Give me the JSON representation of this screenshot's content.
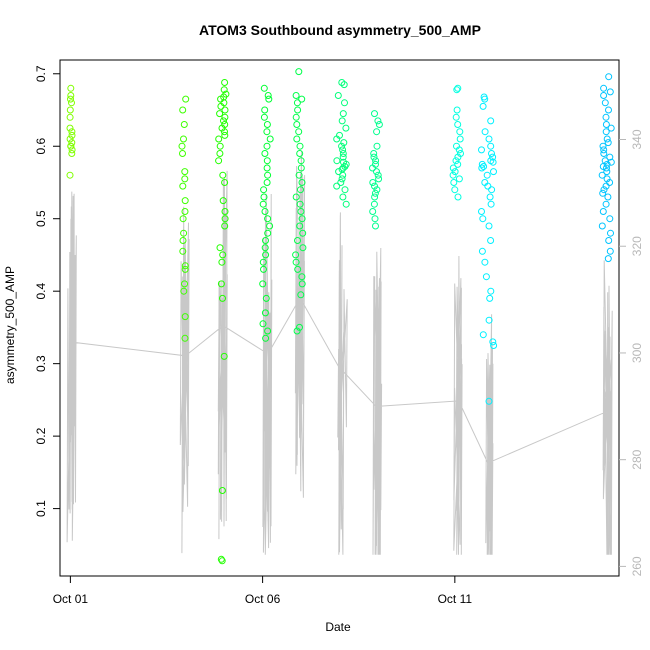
{
  "chart_data": {
    "type": "scatter",
    "title": "ATOM3 Southbound asymmetry_500_AMP",
    "xlabel": "Date",
    "ylabel": "asymmetry_500_AMP",
    "x_ticks": [
      "Oct 01",
      "Oct 06",
      "Oct 11"
    ],
    "x_tick_days": [
      1,
      6,
      11
    ],
    "xlim": [
      0.73,
      15.27
    ],
    "ylim": [
      0.007,
      0.719
    ],
    "y_ticks": [
      0.1,
      0.2,
      0.3,
      0.4,
      0.5,
      0.6,
      0.7
    ],
    "y_right_ticks": [
      260,
      280,
      300,
      320,
      340
    ],
    "y_right_lim": [
      258.2,
      354.9
    ],
    "grid": false,
    "point_style": "open-circle",
    "line_color": "#c8c8c8",
    "right_axis_color": "#b8b8b8",
    "series": [
      {
        "color": "#80ff00",
        "center_day": 1.02,
        "spread": 0.03,
        "ys": [
          0.68,
          0.67,
          0.665,
          0.66,
          0.65,
          0.64,
          0.625,
          0.62,
          0.615,
          0.61,
          0.605,
          0.6,
          0.6,
          0.595,
          0.59,
          0.56
        ]
      },
      {
        "color": "#3eff00",
        "center_day": 3.95,
        "spread": 0.05,
        "ys": [
          0.665,
          0.65,
          0.63,
          0.61,
          0.6,
          0.59,
          0.565,
          0.555,
          0.545,
          0.525,
          0.51,
          0.5,
          0.48,
          0.47,
          0.455,
          0.435,
          0.43,
          0.41,
          0.4,
          0.365,
          0.335
        ]
      },
      {
        "color": "#22ff00",
        "center_day": 4.95,
        "spread": 0.1,
        "ys": [
          0.688,
          0.678,
          0.672,
          0.668,
          0.665,
          0.66,
          0.655,
          0.65,
          0.645,
          0.64,
          0.635,
          0.63,
          0.625,
          0.62,
          0.615,
          0.61,
          0.6,
          0.59,
          0.58,
          0.56,
          0.55,
          0.525,
          0.51,
          0.5,
          0.49,
          0.46,
          0.45,
          0.44,
          0.41,
          0.39,
          0.31,
          0.125,
          0.03,
          0.028
        ]
      },
      {
        "color": "#00ff33",
        "center_day": 6.1,
        "spread": 0.11,
        "ys": [
          0.68,
          0.67,
          0.665,
          0.65,
          0.64,
          0.63,
          0.62,
          0.61,
          0.6,
          0.59,
          0.58,
          0.57,
          0.56,
          0.55,
          0.54,
          0.53,
          0.52,
          0.51,
          0.5,
          0.49,
          0.48,
          0.47,
          0.46,
          0.45,
          0.44,
          0.43,
          0.41,
          0.39,
          0.37,
          0.355,
          0.345,
          0.335
        ]
      },
      {
        "color": "#00ff4a",
        "center_day": 6.95,
        "spread": 0.1,
        "ys": [
          0.703,
          0.67,
          0.665,
          0.66,
          0.65,
          0.64,
          0.63,
          0.62,
          0.61,
          0.6,
          0.59,
          0.58,
          0.57,
          0.56,
          0.55,
          0.54,
          0.53,
          0.52,
          0.51,
          0.5,
          0.49,
          0.48,
          0.47,
          0.46,
          0.45,
          0.44,
          0.43,
          0.42,
          0.41,
          0.395,
          0.35,
          0.345
        ]
      },
      {
        "color": "#00ff7a",
        "center_day": 8.05,
        "spread": 0.13,
        "ys": [
          0.688,
          0.685,
          0.67,
          0.66,
          0.645,
          0.635,
          0.625,
          0.615,
          0.61,
          0.605,
          0.6,
          0.595,
          0.59,
          0.585,
          0.58,
          0.578,
          0.575,
          0.572,
          0.57,
          0.568,
          0.565,
          0.56,
          0.555,
          0.55,
          0.545,
          0.54,
          0.53,
          0.52
        ]
      },
      {
        "color": "#00ff8e",
        "center_day": 8.95,
        "spread": 0.1,
        "ys": [
          0.645,
          0.635,
          0.63,
          0.62,
          0.6,
          0.59,
          0.585,
          0.58,
          0.575,
          0.57,
          0.565,
          0.56,
          0.555,
          0.55,
          0.545,
          0.54,
          0.535,
          0.53,
          0.52,
          0.51,
          0.5,
          0.49
        ]
      },
      {
        "color": "#00ffe0",
        "center_day": 11.05,
        "spread": 0.1,
        "ys": [
          0.68,
          0.678,
          0.65,
          0.64,
          0.63,
          0.62,
          0.61,
          0.6,
          0.595,
          0.59,
          0.585,
          0.58,
          0.575,
          0.57,
          0.565,
          0.56,
          0.555,
          0.55,
          0.54,
          0.53
        ]
      },
      {
        "color": "#00f0ff",
        "center_day": 11.85,
        "spread": 0.16,
        "ys": [
          0.668,
          0.665,
          0.655,
          0.635,
          0.62,
          0.61,
          0.6,
          0.595,
          0.59,
          0.585,
          0.58,
          0.578,
          0.575,
          0.572,
          0.57,
          0.565,
          0.56,
          0.55,
          0.545,
          0.54,
          0.53,
          0.52,
          0.51,
          0.5,
          0.49,
          0.47,
          0.455,
          0.44,
          0.42,
          0.4,
          0.39,
          0.36,
          0.34,
          0.33,
          0.325,
          0.248
        ]
      },
      {
        "color": "#00c4ff",
        "center_day": 14.95,
        "spread": 0.12,
        "ys": [
          0.696,
          0.68,
          0.675,
          0.67,
          0.66,
          0.65,
          0.64,
          0.63,
          0.625,
          0.62,
          0.61,
          0.605,
          0.6,
          0.595,
          0.59,
          0.585,
          0.58,
          0.578,
          0.575,
          0.572,
          0.57,
          0.565,
          0.56,
          0.555,
          0.55,
          0.545,
          0.54,
          0.535,
          0.53,
          0.52,
          0.51,
          0.5,
          0.49,
          0.48,
          0.47,
          0.455,
          0.445
        ]
      }
    ],
    "line_anchor_days": [
      1.02,
      3.95,
      4.95,
      6.1,
      6.95,
      8.05,
      8.95,
      11.05,
      11.85,
      14.95
    ],
    "line_anchor_values": [
      302,
      299.5,
      305,
      300,
      310,
      296.5,
      290,
      291,
      279.5,
      289
    ]
  }
}
